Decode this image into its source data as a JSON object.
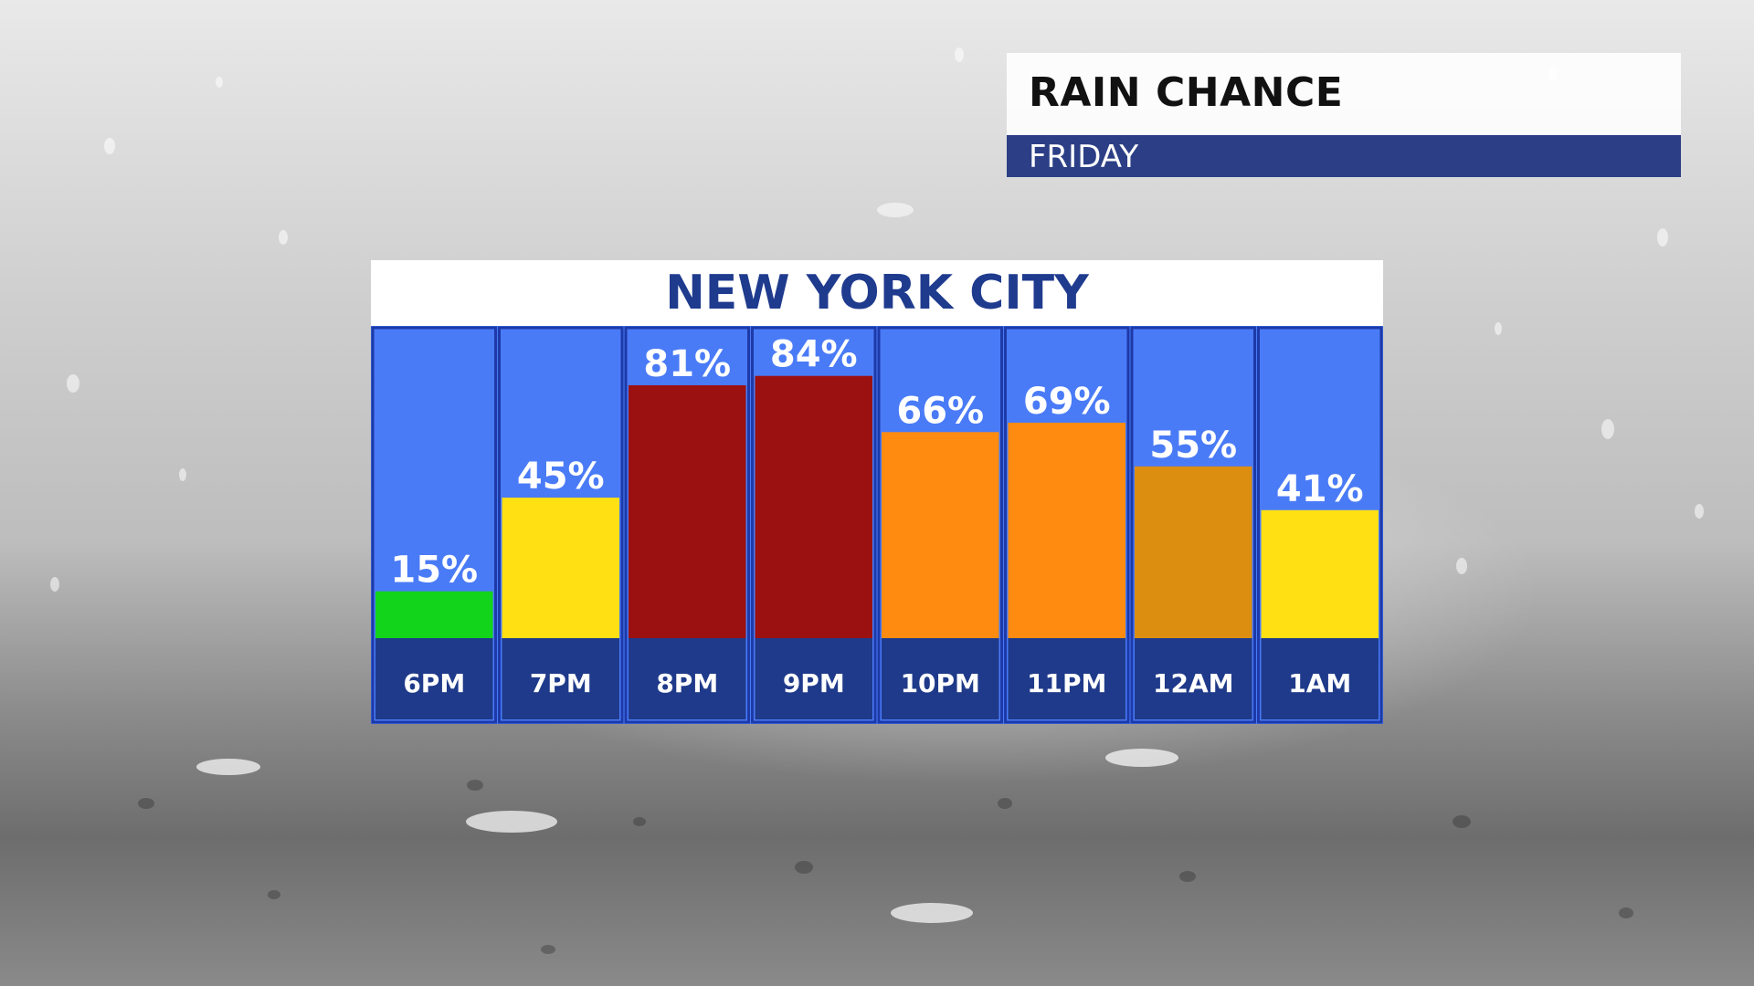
{
  "header": {
    "title": "RAIN CHANCE",
    "subtitle": "FRIDAY"
  },
  "location": "NEW YORK CITY",
  "colors": {
    "column_bg": "#4a7bf7",
    "column_border": "#1d3aa8",
    "label_bg": "#1f3a8a",
    "low": "#12d41a",
    "moderate": "#ffe013",
    "high": "#ff8c10",
    "high_muted": "#dc8e10",
    "very_high": "#9b1111"
  },
  "chart_data": {
    "type": "bar",
    "title": "RAIN CHANCE",
    "subtitle": "FRIDAY",
    "categories": [
      "6PM",
      "7PM",
      "8PM",
      "9PM",
      "10PM",
      "11PM",
      "12AM",
      "1AM"
    ],
    "values": [
      15,
      45,
      81,
      84,
      66,
      69,
      55,
      41
    ],
    "value_labels": [
      "15%",
      "45%",
      "81%",
      "84%",
      "66%",
      "69%",
      "55%",
      "41%"
    ],
    "bar_colors": [
      "#12d41a",
      "#ffe013",
      "#9b1111",
      "#9b1111",
      "#ff8c10",
      "#ff8c10",
      "#dc8e10",
      "#ffe013"
    ],
    "unit": "%",
    "ylim": [
      0,
      100
    ],
    "grid": false,
    "xlabel": "",
    "ylabel": ""
  }
}
